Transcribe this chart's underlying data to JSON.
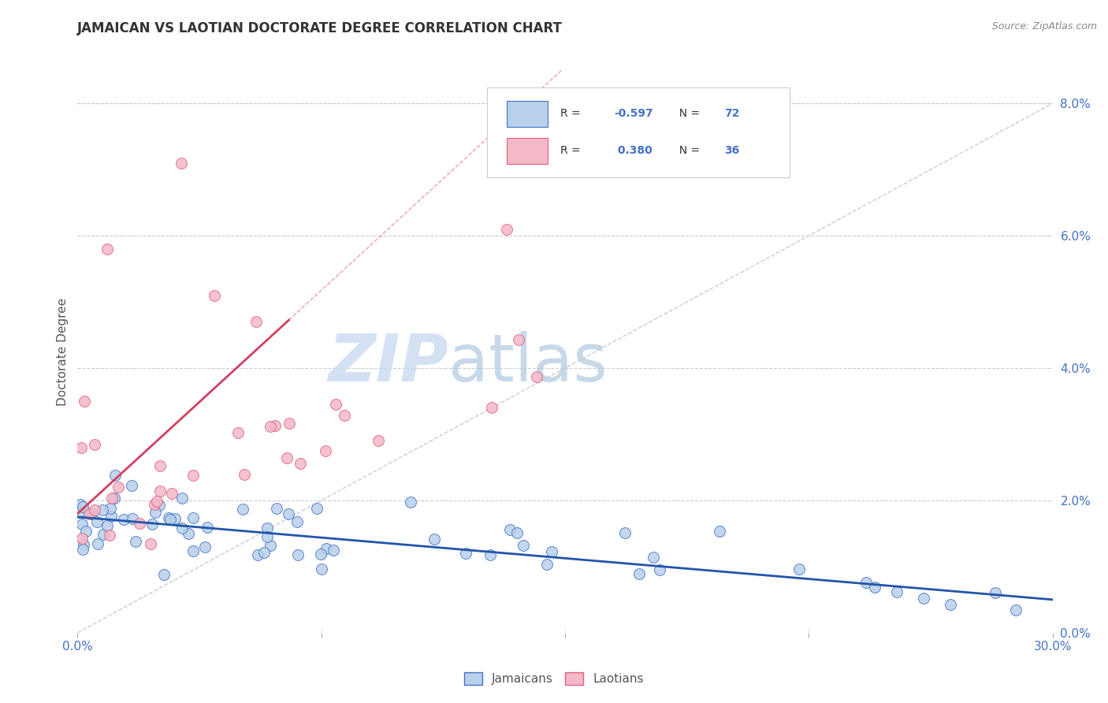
{
  "title": "JAMAICAN VS LAOTIAN DOCTORATE DEGREE CORRELATION CHART",
  "source": "Source: ZipAtlas.com",
  "ylabel": "Doctorate Degree",
  "right_axis_ticks": [
    "0.0%",
    "2.0%",
    "4.0%",
    "6.0%",
    "8.0%"
  ],
  "right_axis_values": [
    0.0,
    2.0,
    4.0,
    6.0,
    8.0
  ],
  "xlim": [
    0.0,
    30.0
  ],
  "ylim": [
    0.0,
    8.5
  ],
  "ymax_display": 8.0,
  "jamaicans_R": -0.597,
  "jamaicans_N": 72,
  "laotians_R": 0.38,
  "laotians_N": 36,
  "blue_fill": "#b8d0ea",
  "blue_edge": "#4472c4",
  "pink_fill": "#f5b8c8",
  "pink_edge": "#e06080",
  "blue_line_color": "#2255aa",
  "pink_line_color": "#d04060",
  "title_color": "#333333",
  "axis_label_color": "#4472c4",
  "source_color": "#888888",
  "grid_color": "#cccccc",
  "watermark_zip_color": "#c8daf0",
  "watermark_atlas_color": "#b0c8e0",
  "legend_box_edge": "#cccccc",
  "legend_text_color": "#333333",
  "legend_r_color": "#4472c4",
  "bottom_legend_text_color": "#555555"
}
